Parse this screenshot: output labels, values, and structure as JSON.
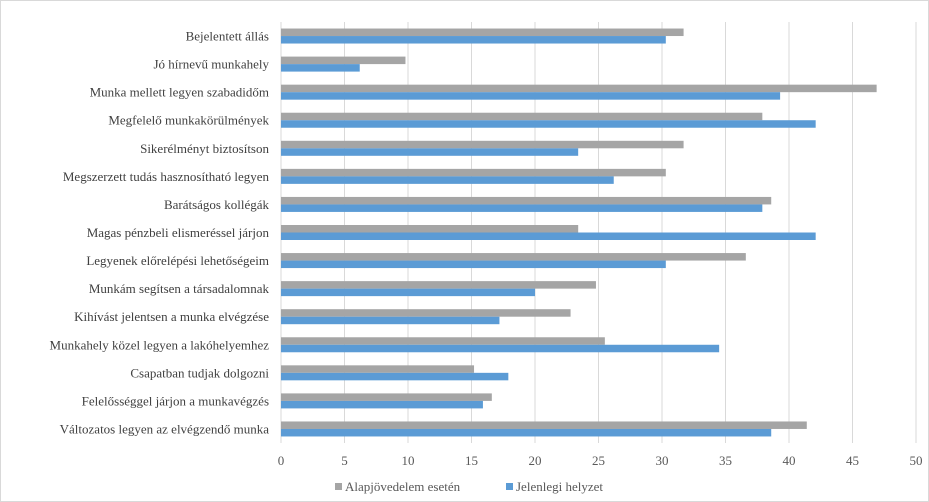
{
  "chart_data": {
    "type": "bar",
    "orientation": "horizontal",
    "categories": [
      "Bejelentett állás",
      "Jó hírnevű munkahely",
      "Munka mellett legyen szabadidőm",
      "Megfelelő munkakörülmények",
      "Sikerélményt biztosítson",
      "Megszerzett tudás hasznosítható legyen",
      "Barátságos kollégák",
      "Magas pénzbeli elismeréssel járjon",
      "Legyenek előrelépési lehetőségeim",
      "Munkám segítsen a társadalomnak",
      "Kihívást jelentsen a munka elvégzése",
      "Munkahely közel legyen a lakóhelyemhez",
      "Csapatban tudjak dolgozni",
      "Felelősséggel járjon a munkavégzés",
      "Változatos legyen az elvégzendő munka"
    ],
    "series": [
      {
        "name": "Alapjövedelem esetén",
        "color": "#a5a5a5",
        "values": [
          31.7,
          9.8,
          46.9,
          37.9,
          31.7,
          30.3,
          38.6,
          23.4,
          36.6,
          24.8,
          22.8,
          25.5,
          15.2,
          16.6,
          41.4
        ]
      },
      {
        "name": "Jelenlegi helyzet",
        "color": "#5b9bd5",
        "values": [
          30.3,
          6.2,
          39.3,
          42.1,
          23.4,
          26.2,
          37.9,
          42.1,
          30.3,
          20.0,
          17.2,
          34.5,
          17.9,
          15.9,
          38.6
        ]
      }
    ],
    "xlim": [
      0,
      50
    ],
    "xticks": [
      "0",
      "5",
      "10",
      "15",
      "20",
      "25",
      "30",
      "35",
      "40",
      "45",
      "50"
    ],
    "grid": "vertical",
    "legend": "bottom-center",
    "title": "",
    "xlabel": "",
    "ylabel": ""
  }
}
